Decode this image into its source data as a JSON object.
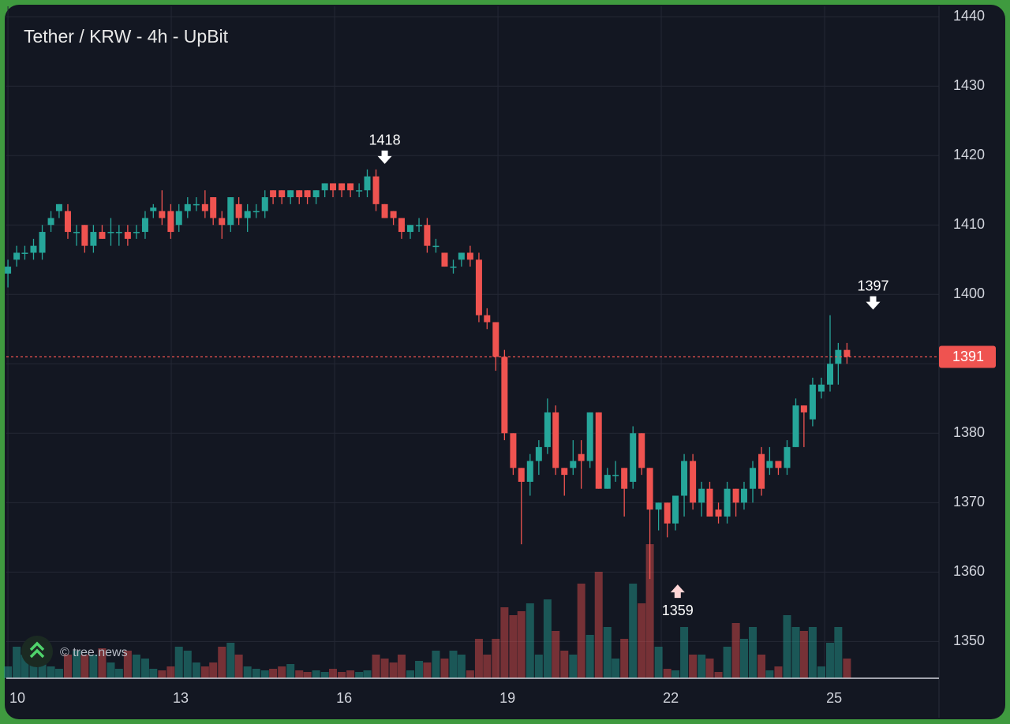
{
  "chart_data": {
    "type": "candlestick",
    "title": "Tether / KRW - 4h - UpBit",
    "watermark": "© tree.news",
    "up_color": "#26a69a",
    "down_color": "#ef5350",
    "xlim": [
      9.97,
      27.1
    ],
    "xticks": [
      10,
      13,
      16,
      19,
      22,
      25
    ],
    "ylim": [
      1344.7,
      1441.5
    ],
    "yticks": [
      1350,
      1360,
      1370,
      1380,
      1390,
      1400,
      1410,
      1420,
      1430,
      1440
    ],
    "grid": true,
    "last_price": 1391,
    "annotations": [
      {
        "value": 1418,
        "x": 16.92,
        "direction": "down"
      },
      {
        "value": 1397,
        "x": 25.89,
        "direction": "down"
      },
      {
        "value": 1359,
        "x": 22.3,
        "direction": "up"
      }
    ],
    "x": [
      10,
      10.16,
      10.31,
      10.47,
      10.63,
      10.79,
      10.94,
      11.1,
      11.26,
      11.41,
      11.57,
      11.73,
      11.89,
      12.04,
      12.2,
      12.36,
      12.52,
      12.67,
      12.83,
      12.99,
      13.14,
      13.3,
      13.46,
      13.62,
      13.77,
      13.93,
      14.09,
      14.24,
      14.4,
      14.56,
      14.72,
      14.87,
      15.03,
      15.19,
      15.35,
      15.5,
      15.66,
      15.82,
      15.97,
      16.13,
      16.29,
      16.45,
      16.6,
      16.76,
      16.92,
      17.08,
      17.23,
      17.39,
      17.55,
      17.7,
      17.86,
      18.02,
      18.18,
      18.33,
      18.49,
      18.65,
      18.8,
      18.96,
      19.12,
      19.28,
      19.43,
      19.59,
      19.75,
      19.91,
      20.06,
      20.22,
      20.38,
      20.53,
      20.69,
      20.85,
      21.01,
      21.16,
      21.32,
      21.48,
      21.64,
      21.79,
      21.95,
      22.11,
      22.26,
      22.42,
      22.58,
      22.74,
      22.89,
      23.05,
      23.21,
      23.37,
      23.52,
      23.68,
      23.84,
      23.99,
      24.15,
      24.31,
      24.47,
      24.62,
      24.78,
      24.94,
      25.1,
      25.25,
      25.41
    ],
    "open": [
      1403,
      1405,
      1406,
      1406,
      1406,
      1410,
      1412,
      1412,
      1409,
      1410,
      1407,
      1409,
      1409,
      1409,
      1409,
      1409,
      1409,
      1412,
      1412,
      1412,
      1410,
      1412,
      1413,
      1413,
      1414,
      1411,
      1410,
      1413,
      1411,
      1412,
      1412,
      1415,
      1415,
      1414,
      1415,
      1415,
      1414,
      1415,
      1416,
      1416,
      1416,
      1415,
      1415,
      1417,
      1413,
      1412,
      1411,
      1409,
      1410,
      1410,
      1407,
      1406,
      1404,
      1405,
      1406,
      1405,
      1397,
      1396,
      1391,
      1380,
      1375,
      1373,
      1376,
      1378,
      1383,
      1375,
      1375,
      1377,
      1376,
      1383,
      1372,
      1374,
      1375,
      1373,
      1380,
      1375,
      1369,
      1370,
      1367,
      1371,
      1376,
      1370,
      1372,
      1369,
      1368,
      1372,
      1370,
      1372,
      1377,
      1375,
      1376,
      1375,
      1378,
      1384,
      1382,
      1386,
      1387,
      1390,
      1392
    ],
    "high": [
      1405,
      1407,
      1407,
      1408,
      1410,
      1412,
      1413,
      1413,
      1410,
      1410,
      1410,
      1410,
      1411,
      1410,
      1410,
      1410,
      1412,
      1413,
      1415,
      1413,
      1413,
      1414,
      1414,
      1415,
      1414,
      1412,
      1414,
      1414,
      1413,
      1413,
      1415,
      1415,
      1415,
      1415,
      1415,
      1415,
      1415,
      1416,
      1416,
      1416,
      1416,
      1416,
      1418,
      1418,
      1413,
      1412,
      1411,
      1410,
      1411,
      1411,
      1408,
      1406,
      1405,
      1406,
      1407,
      1406,
      1398,
      1396,
      1392,
      1380,
      1375,
      1377,
      1379,
      1385,
      1384,
      1375,
      1379,
      1379,
      1383,
      1383,
      1375,
      1376,
      1375,
      1381,
      1380,
      1375,
      1370,
      1370,
      1371,
      1377,
      1377,
      1373,
      1373,
      1370,
      1373,
      1372,
      1373,
      1376,
      1378,
      1378,
      1376,
      1379,
      1385,
      1384,
      1388,
      1388,
      1397,
      1393,
      1393
    ],
    "low": [
      1401,
      1404,
      1405,
      1405,
      1405,
      1409,
      1411,
      1408,
      1407,
      1406,
      1406,
      1408,
      1407,
      1407,
      1407,
      1408,
      1408,
      1411,
      1410,
      1408,
      1409,
      1411,
      1412,
      1411,
      1410,
      1408,
      1409,
      1410,
      1409,
      1411,
      1411,
      1413,
      1413,
      1413,
      1413,
      1413,
      1413,
      1414,
      1414,
      1414,
      1414,
      1414,
      1414,
      1412,
      1411,
      1410,
      1408,
      1408,
      1409,
      1406,
      1406,
      1404,
      1403,
      1404,
      1404,
      1396,
      1395,
      1389,
      1379,
      1374,
      1364,
      1371,
      1374,
      1377,
      1374,
      1371,
      1374,
      1372,
      1375,
      1372,
      1372,
      1373,
      1368,
      1372,
      1374,
      1359,
      1366,
      1365,
      1366,
      1368,
      1369,
      1368,
      1368,
      1367,
      1367,
      1368,
      1369,
      1370,
      1371,
      1374,
      1374,
      1374,
      1378,
      1378,
      1381,
      1385,
      1386,
      1387,
      1390
    ],
    "close": [
      1404,
      1406,
      1406,
      1407,
      1409,
      1411,
      1413,
      1409,
      1409,
      1407,
      1409,
      1408,
      1409,
      1409,
      1408,
      1409,
      1411,
      1412.5,
      1411,
      1409,
      1412,
      1413,
      1413,
      1412,
      1411,
      1410,
      1414,
      1411,
      1412,
      1412,
      1414,
      1414,
      1414,
      1415,
      1414,
      1414,
      1415,
      1416,
      1415,
      1415,
      1415,
      1415,
      1417,
      1413,
      1411,
      1411,
      1409,
      1410,
      1410,
      1407,
      1407,
      1404,
      1404,
      1406,
      1405,
      1397,
      1396,
      1391,
      1380,
      1375,
      1373,
      1376,
      1378,
      1383,
      1375,
      1374,
      1376,
      1376,
      1383,
      1372,
      1374,
      1374,
      1372,
      1380,
      1375,
      1369,
      1370,
      1367,
      1371,
      1376,
      1370,
      1372,
      1368,
      1368,
      1372,
      1370,
      1372,
      1375,
      1372,
      1376,
      1375,
      1378,
      1384,
      1383,
      1387,
      1387,
      1390,
      1392,
      1391
    ],
    "volume": [
      15,
      40,
      30,
      35,
      25,
      15,
      12,
      30,
      35,
      30,
      30,
      38,
      20,
      12,
      35,
      30,
      25,
      12,
      10,
      15,
      40,
      35,
      20,
      15,
      20,
      40,
      45,
      30,
      15,
      12,
      10,
      12,
      15,
      18,
      10,
      8,
      10,
      8,
      12,
      8,
      10,
      8,
      10,
      30,
      25,
      20,
      30,
      10,
      22,
      20,
      35,
      25,
      35,
      30,
      10,
      50,
      30,
      50,
      90,
      80,
      85,
      95,
      30,
      100,
      60,
      35,
      30,
      120,
      55,
      135,
      65,
      25,
      50,
      120,
      95,
      170,
      40,
      12,
      10,
      65,
      30,
      30,
      25,
      8,
      40,
      70,
      50,
      65,
      30,
      10,
      15,
      80,
      65,
      60,
      65,
      15,
      45,
      65,
      25
    ]
  }
}
